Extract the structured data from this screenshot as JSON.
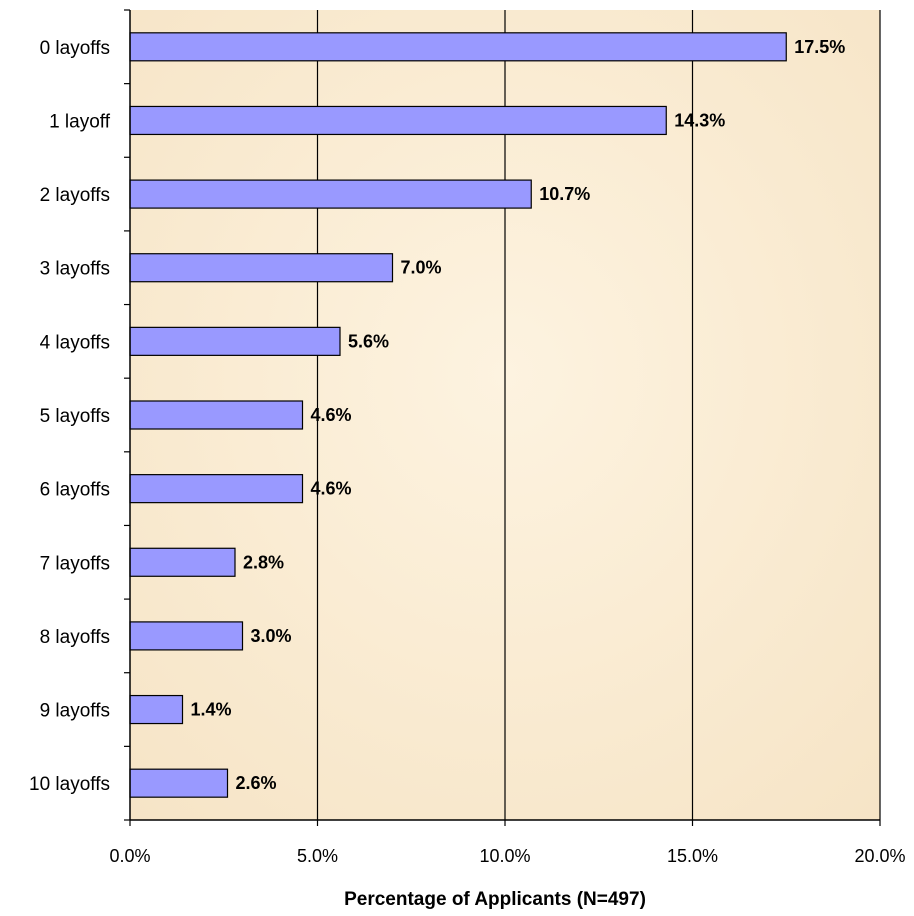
{
  "chart_data": {
    "type": "bar",
    "orientation": "horizontal",
    "categories": [
      "0 layoffs",
      "1 layoff",
      "2 layoffs",
      "3 layoffs",
      "4 layoffs",
      "5 layoffs",
      "6 layoffs",
      "7 layoffs",
      "8 layoffs",
      "9 layoffs",
      "10 layoffs"
    ],
    "values": [
      17.5,
      14.3,
      10.7,
      7.0,
      5.6,
      4.6,
      4.6,
      2.8,
      3.0,
      1.4,
      2.6
    ],
    "data_labels": [
      "17.5%",
      "14.3%",
      "10.7%",
      "7.0%",
      "5.6%",
      "4.6%",
      "4.6%",
      "2.8%",
      "3.0%",
      "1.4%",
      "2.6%"
    ],
    "title": "",
    "xlabel": "Percentage of Applicants (N=497)",
    "ylabel": "",
    "xlim": [
      0,
      20
    ],
    "xticks": [
      0,
      5,
      10,
      15,
      20
    ],
    "xtick_labels": [
      "0.0%",
      "5.0%",
      "10.0%",
      "15.0%",
      "20.0%"
    ],
    "grid": "vertical",
    "legend": "none",
    "colors": {
      "bar_fill": "#9999ff",
      "bar_stroke": "#000000",
      "plot_background": "#fbefd8",
      "gridline": "#000000"
    }
  }
}
